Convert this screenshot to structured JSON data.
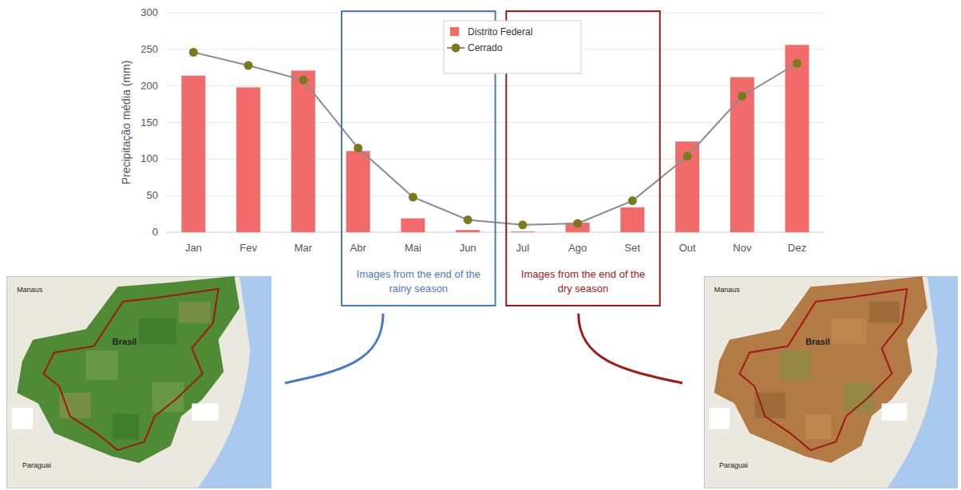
{
  "chart_data": {
    "type": "bar",
    "y_label": "Precipitação média (mm)",
    "categories": [
      "Jan",
      "Fev",
      "Mar",
      "Abr",
      "Mai",
      "Jun",
      "Jul",
      "Ago",
      "Set",
      "Out",
      "Nov",
      "Dez"
    ],
    "series": [
      {
        "name": "Distrito Federal",
        "type": "bar",
        "color": "#f26b6b",
        "values": [
          214,
          198,
          221,
          111,
          19,
          3,
          1,
          13,
          34,
          124,
          212,
          256
        ]
      },
      {
        "name": "Cerrado",
        "type": "line",
        "color": "#7a7a1c",
        "marker": "circle",
        "values": [
          246,
          228,
          208,
          115,
          48,
          17,
          10,
          12,
          43,
          104,
          186,
          231
        ]
      }
    ],
    "ylim": [
      0,
      300
    ],
    "yticks": [
      0,
      50,
      100,
      150,
      200,
      250,
      300
    ],
    "grid": true,
    "legend": "upper center",
    "annotations": [
      {
        "text": "Images from the end of the rainy season",
        "start": "Abr",
        "end": "Jun",
        "color": "#4a78c8"
      },
      {
        "text": "Images from the end of the dry season",
        "start": "Jul",
        "end": "Set",
        "color": "#a01818"
      }
    ]
  },
  "maps": [
    {
      "labels": [
        "Manaus",
        "Brasil",
        "Paraguai"
      ]
    },
    {
      "labels": [
        "Manaus",
        "Brasil",
        "Paraguai"
      ]
    }
  ]
}
